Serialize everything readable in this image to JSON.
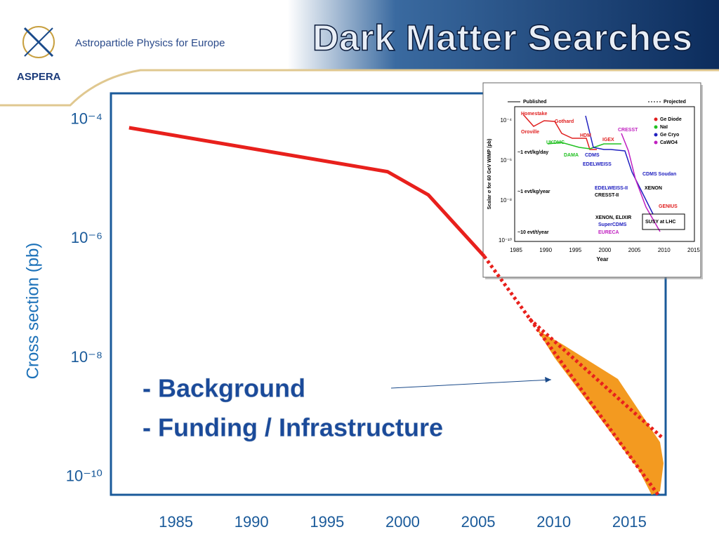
{
  "header": {
    "title": "Dark Matter Searches",
    "logo": "ASPERA",
    "organization": "Astroparticle Physics for Europe"
  },
  "chart_data": {
    "type": "line",
    "y_label": "Cross section (pb)",
    "log_y": true,
    "xlim": [
      1980.7,
      2017.4
    ],
    "ylim": [
      5e-11,
      0.00028
    ],
    "xticks": [
      1985,
      1990,
      1995,
      2000,
      2005,
      2010,
      2015
    ],
    "yticks": [
      {
        "value": 0.0001,
        "label": "10⁻⁴"
      },
      {
        "value": 1e-06,
        "label": "10⁻⁶"
      },
      {
        "value": 1e-08,
        "label": "10⁻⁸"
      },
      {
        "value": 1e-10,
        "label": "10⁻¹⁰"
      }
    ],
    "series": [
      {
        "color": "#e8201c",
        "style": "solid",
        "x": [
          1981.9,
          1999.0,
          2001.7,
          2005.4
        ],
        "values": [
          7.4e-05,
          1.35e-05,
          5.5e-06,
          5.1e-07
        ]
      },
      {
        "color": "#e8201c",
        "style": "dotted",
        "x": [
          2005.4,
          2016.9
        ],
        "values": [
          5.1e-07,
          5e-11
        ]
      },
      {
        "color": "#e8201c",
        "style": "dotted",
        "x": [
          2008.4,
          2017.2
        ],
        "values": [
          4.5e-08,
          4.5e-10
        ]
      }
    ],
    "annotations": [
      "- Background",
      "- Funding / Infrastructure"
    ]
  },
  "inset": {
    "x_label": "Year",
    "y_label": "Scalar σ for 60 GeV WIMP (pb)",
    "xticks": [
      1985,
      1990,
      1995,
      2000,
      2005,
      2010,
      2015
    ],
    "yticks": [
      {
        "value": -4,
        "label": "10⁻⁴"
      },
      {
        "value": -6,
        "label": "10⁻⁶"
      },
      {
        "value": -8,
        "label": "10⁻⁸"
      },
      {
        "value": -10,
        "label": "10⁻¹⁰"
      }
    ],
    "legend": [
      "Published",
      "Projected",
      "Ge Diode",
      "NaI",
      "Ge Cryo",
      "CaWO4"
    ],
    "labels": [
      "Homestake",
      "Gothard",
      "Oroville",
      "CRESST",
      "HDM",
      "IGEX",
      "UKDMC",
      "~1 evt/kg/day",
      "DAMA",
      "CDMS",
      "EDELWEISS",
      "CDMS Soudan",
      "EDELWEISS-II",
      "CRESST-II",
      "XENON",
      "~1 evt/kg/year",
      "GENIUS",
      "XENON, ELIXIR",
      "SuperCDMS",
      "SUSY at LHC",
      "EURECA",
      "~10 evt/t/year"
    ]
  }
}
